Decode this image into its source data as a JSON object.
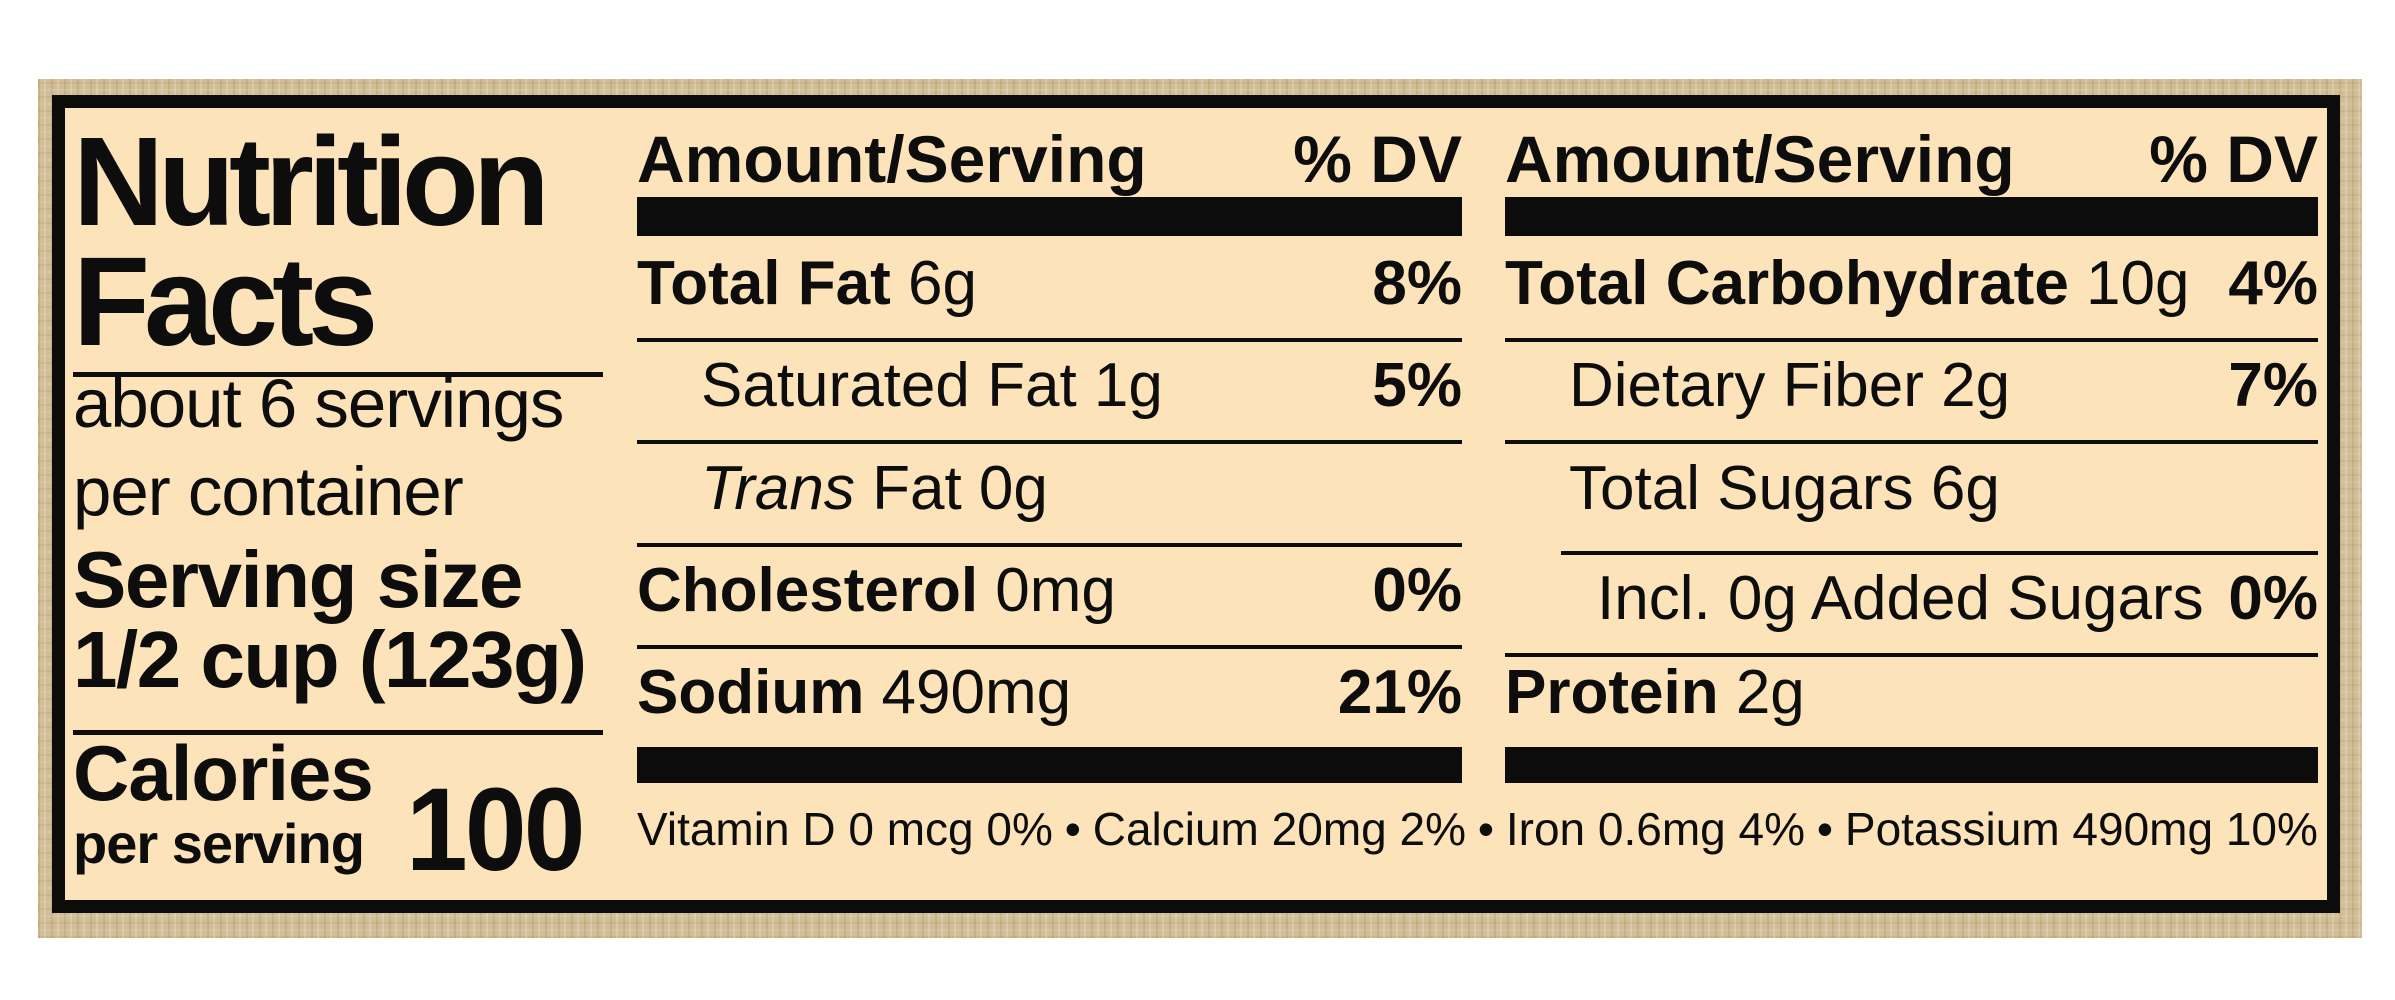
{
  "colors": {
    "page_background": "#ffffff",
    "label_background": "#fce3ba",
    "burlap_margin": "#d2be96",
    "ink": "#0d0d0d"
  },
  "title": {
    "line1": "Nutrition",
    "line2": "Facts"
  },
  "servings": {
    "line1": "about 6 servings",
    "line2": "per container"
  },
  "serving_size": {
    "label": "Serving size",
    "value": "1/2 cup (123g)"
  },
  "calories": {
    "label": "Calories",
    "sublabel": "per serving",
    "value": "100"
  },
  "table_header": {
    "amount": "Amount/Serving",
    "dv": "% DV"
  },
  "left_table": {
    "rows": [
      {
        "bold": "Total Fat",
        "rest": " 6g",
        "dv": "8%"
      },
      {
        "rest": "Saturated Fat 1g",
        "dv": "5%"
      },
      {
        "italic": "Trans",
        "rest": " Fat 0g",
        "dv": ""
      },
      {
        "bold": "Cholesterol",
        "rest": " 0mg",
        "dv": "0%"
      },
      {
        "bold": "Sodium",
        "rest": " 490mg",
        "dv": "21%"
      }
    ]
  },
  "right_table": {
    "rows": [
      {
        "bold": "Total Carbohydrate",
        "rest": " 10g",
        "dv": "4%"
      },
      {
        "rest": "Dietary Fiber 2g",
        "dv": "7%"
      },
      {
        "rest": "Total Sugars 6g",
        "dv": ""
      },
      {
        "rest": "Incl. 0g Added Sugars",
        "dv": "0%"
      },
      {
        "bold": "Protein",
        "rest": " 2g",
        "dv": ""
      }
    ]
  },
  "footnote": {
    "separator": "•",
    "items": [
      "Vitamin D 0 mcg 0%",
      "Calcium 20mg 2%",
      "Iron 0.6mg 4%",
      "Potassium 490mg 10%"
    ]
  }
}
